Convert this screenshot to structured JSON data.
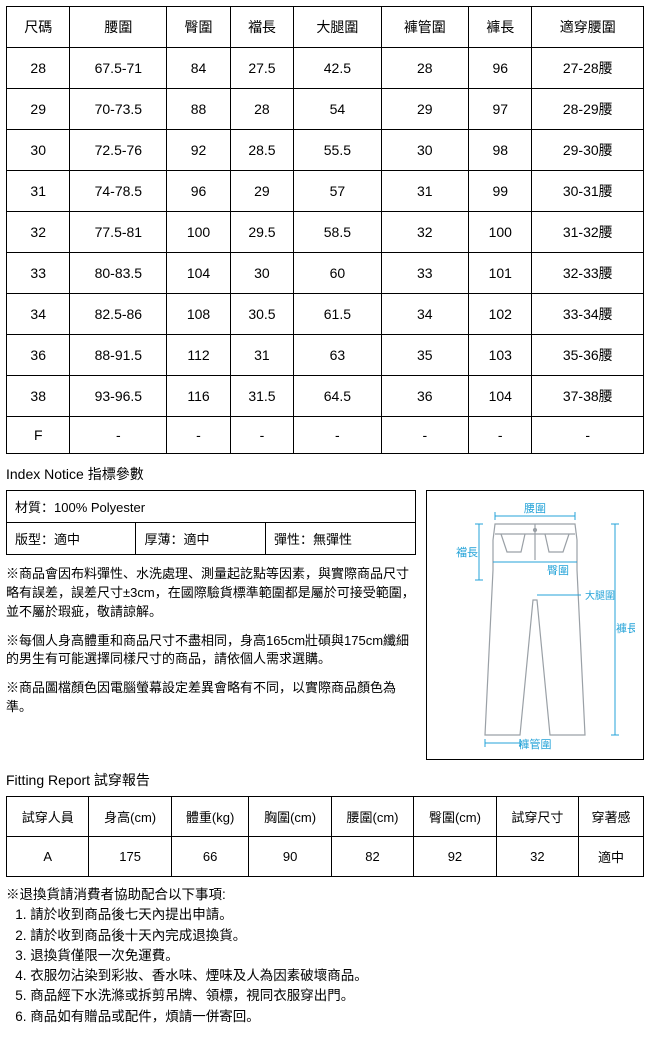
{
  "sizeTable": {
    "headers": [
      "尺碼",
      "腰圍",
      "臀圍",
      "襠長",
      "大腿圍",
      "褲管圍",
      "褲長",
      "適穿腰圍"
    ],
    "rows": [
      [
        "28",
        "67.5-71",
        "84",
        "27.5",
        "42.5",
        "28",
        "96",
        "27-28腰"
      ],
      [
        "29",
        "70-73.5",
        "88",
        "28",
        "54",
        "29",
        "97",
        "28-29腰"
      ],
      [
        "30",
        "72.5-76",
        "92",
        "28.5",
        "55.5",
        "30",
        "98",
        "29-30腰"
      ],
      [
        "31",
        "74-78.5",
        "96",
        "29",
        "57",
        "31",
        "99",
        "30-31腰"
      ],
      [
        "32",
        "77.5-81",
        "100",
        "29.5",
        "58.5",
        "32",
        "100",
        "31-32腰"
      ],
      [
        "33",
        "80-83.5",
        "104",
        "30",
        "60",
        "33",
        "101",
        "32-33腰"
      ],
      [
        "34",
        "82.5-86",
        "108",
        "30.5",
        "61.5",
        "34",
        "102",
        "33-34腰"
      ],
      [
        "36",
        "88-91.5",
        "112",
        "31",
        "63",
        "35",
        "103",
        "35-36腰"
      ],
      [
        "38",
        "93-96.5",
        "116",
        "31.5",
        "64.5",
        "36",
        "104",
        "37-38腰"
      ],
      [
        "F",
        "-",
        "-",
        "-",
        "-",
        "-",
        "-",
        "-"
      ]
    ]
  },
  "indexNoticeTitle": "Index Notice 指標參數",
  "spec": {
    "material": "材質：100% Polyester",
    "fit": "版型：適中",
    "thickness": "厚薄：適中",
    "elasticity": "彈性：無彈性"
  },
  "notes": {
    "n1": "※商品會因布料彈性、水洗處理、測量起訖點等因素，與實際商品尺寸略有誤差，誤差尺寸±3cm，在國際驗貨標準範圍都是屬於可接受範圍，並不屬於瑕疵，敬請諒解。",
    "n2": "※每個人身高體重和商品尺寸不盡相同，身高165cm壯碩與175cm纖細的男生有可能選擇同樣尺寸的商品，請依個人需求選購。",
    "n3": "※商品圖檔顏色因電腦螢幕設定差異會略有不同，以實際商品顏色為準。"
  },
  "diagram": {
    "labels": {
      "waist": "腰圍",
      "crotch": "襠長",
      "hip": "臀圍",
      "thigh": "大腿圍",
      "length": "褲長",
      "hem": "褲管圍"
    },
    "colors": {
      "outline": "#9aa0a6",
      "label": "#24a3d8",
      "labelLine": "#24a3d8"
    }
  },
  "fittingTitle": "Fitting Report 試穿報告",
  "fitTable": {
    "headers": [
      "試穿人員",
      "身高(cm)",
      "體重(kg)",
      "胸圍(cm)",
      "腰圍(cm)",
      "臀圍(cm)",
      "試穿尺寸",
      "穿著感"
    ],
    "rows": [
      [
        "A",
        "175",
        "66",
        "90",
        "82",
        "92",
        "32",
        "適中"
      ]
    ]
  },
  "returns": {
    "head": "※退換貨請消費者協助配合以下事項:",
    "items": [
      "請於收到商品後七天內提出申請。",
      "請於收到商品後十天內完成退換貨。",
      "退換貨僅限一次免運費。",
      "衣服勿沾染到彩妝、香水味、煙味及人為因素破壞商品。",
      "商品經下水洗滌或拆剪吊牌、領標，視同衣服穿出門。",
      "商品如有贈品或配件，煩請一併寄回。"
    ]
  }
}
